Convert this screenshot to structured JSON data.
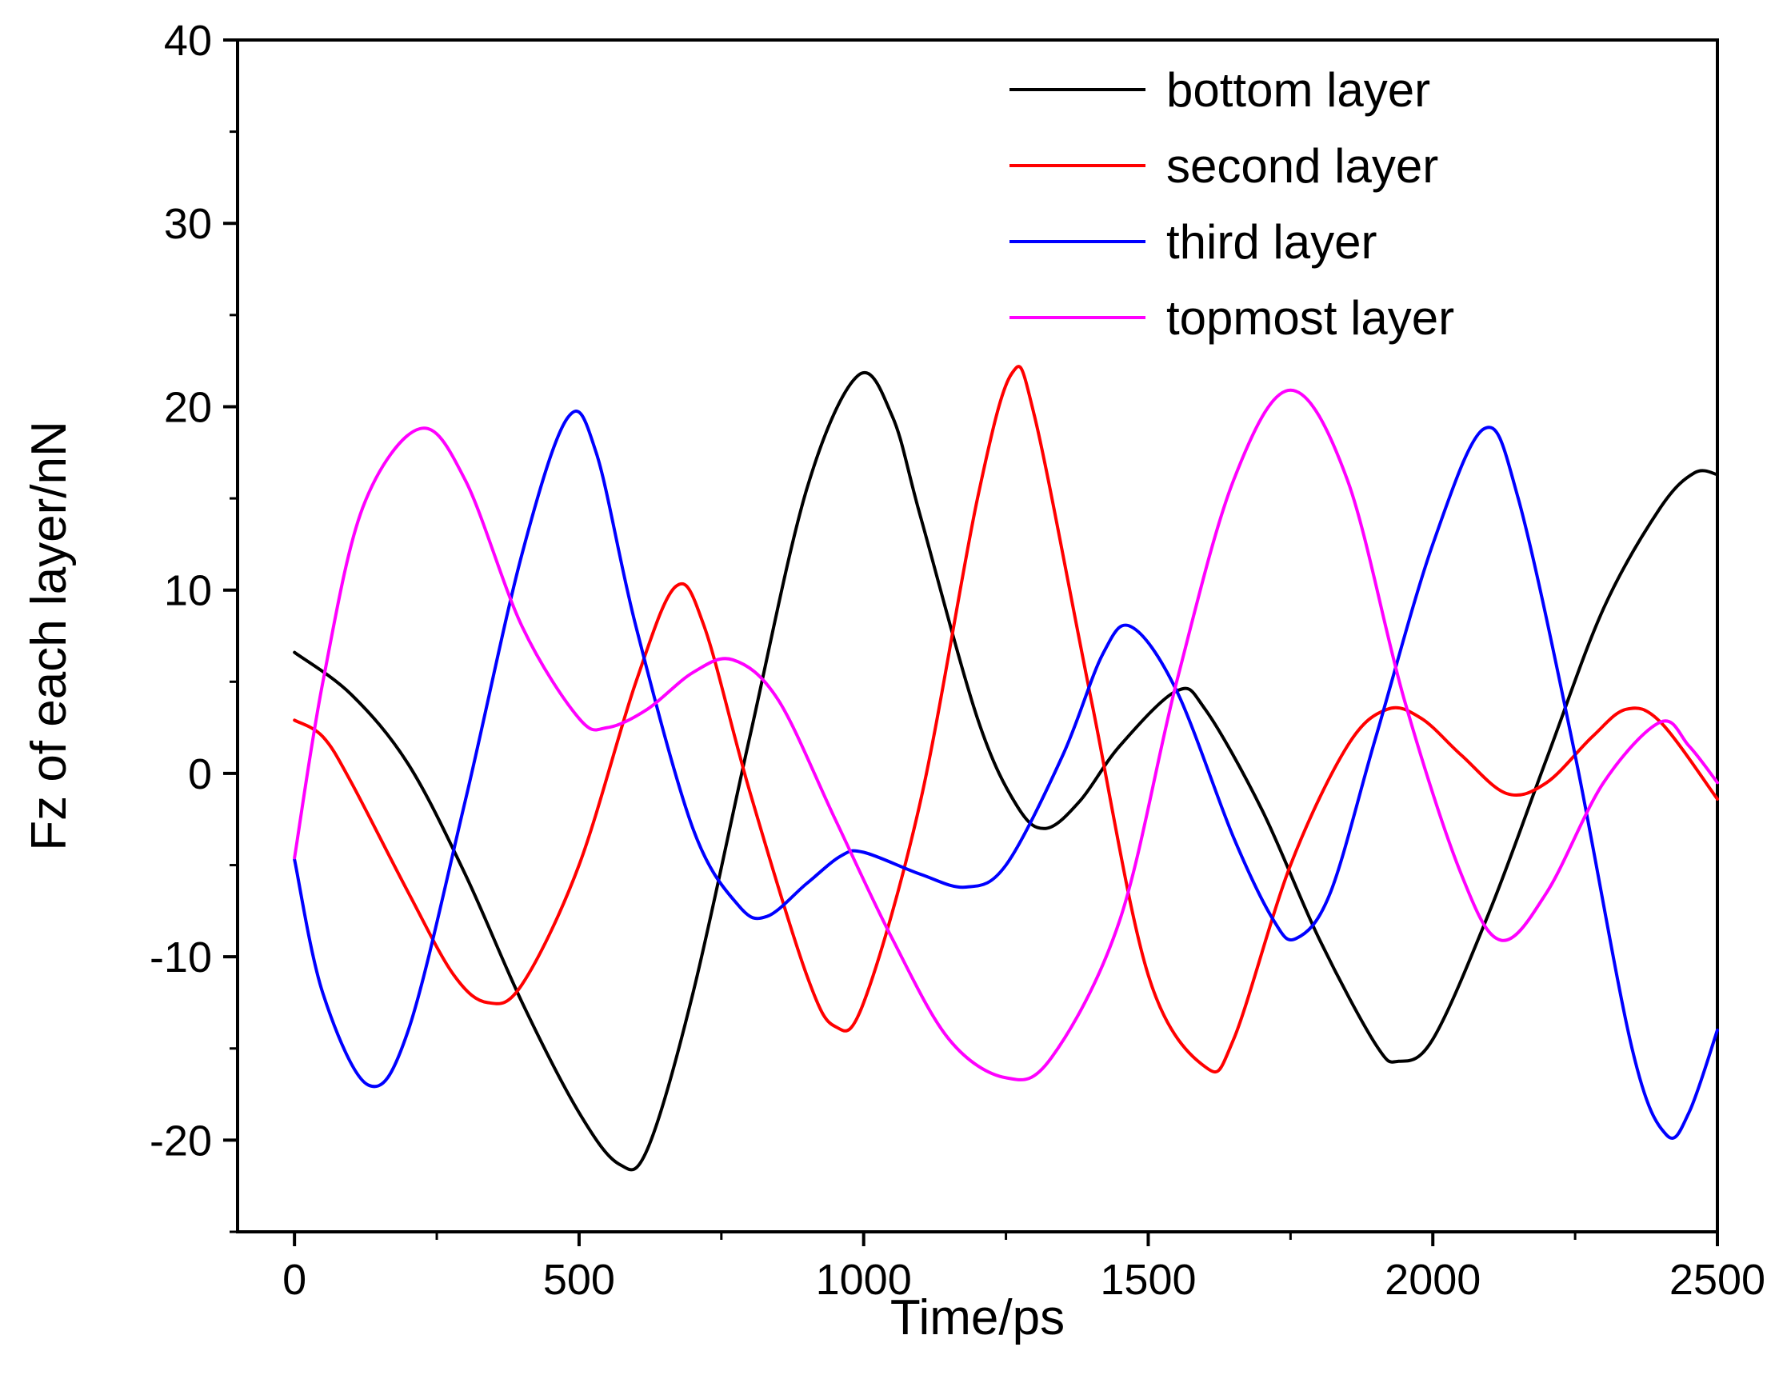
{
  "chart_data": {
    "type": "line",
    "title": "",
    "xlabel": "Time/ps",
    "ylabel": "Fz of each layer/nN",
    "xlim": [
      -100,
      2500
    ],
    "ylim": [
      -25,
      40
    ],
    "xticks": [
      0,
      500,
      1000,
      1500,
      2000,
      2500
    ],
    "xtick_labels": [
      "0",
      "500",
      "1000",
      "1500",
      "2000",
      "2500"
    ],
    "yticks": [
      -20,
      -10,
      0,
      10,
      20,
      30,
      40
    ],
    "ytick_labels": [
      "-20",
      "-10",
      "0",
      "10",
      "20",
      "30",
      "40"
    ],
    "legend_position": "top-right",
    "series": [
      {
        "name": "bottom layer",
        "color": "#000000",
        "points": [
          [
            0,
            6.6
          ],
          [
            100,
            4.3
          ],
          [
            200,
            0.5
          ],
          [
            300,
            -5.5
          ],
          [
            400,
            -12.5
          ],
          [
            500,
            -18.5
          ],
          [
            570,
            -21.3
          ],
          [
            620,
            -20.5
          ],
          [
            700,
            -12.0
          ],
          [
            800,
            2.0
          ],
          [
            900,
            15.5
          ],
          [
            990,
            21.7
          ],
          [
            1050,
            19.5
          ],
          [
            1100,
            14.0
          ],
          [
            1200,
            3.0
          ],
          [
            1270,
            -1.8
          ],
          [
            1320,
            -3.0
          ],
          [
            1380,
            -1.5
          ],
          [
            1450,
            1.5
          ],
          [
            1550,
            4.5
          ],
          [
            1600,
            3.5
          ],
          [
            1700,
            -2.0
          ],
          [
            1800,
            -9.0
          ],
          [
            1900,
            -14.8
          ],
          [
            1940,
            -15.7
          ],
          [
            2000,
            -14.5
          ],
          [
            2100,
            -7.5
          ],
          [
            2200,
            0.8
          ],
          [
            2300,
            9.0
          ],
          [
            2400,
            14.5
          ],
          [
            2460,
            16.4
          ],
          [
            2500,
            16.3
          ]
        ]
      },
      {
        "name": "second layer",
        "color": "#ff0000",
        "points": [
          [
            0,
            2.9
          ],
          [
            50,
            2.0
          ],
          [
            100,
            -0.5
          ],
          [
            200,
            -6.5
          ],
          [
            280,
            -11.0
          ],
          [
            340,
            -12.5
          ],
          [
            400,
            -11.5
          ],
          [
            500,
            -5.0
          ],
          [
            600,
            5.0
          ],
          [
            670,
            10.2
          ],
          [
            720,
            8.0
          ],
          [
            800,
            -1.0
          ],
          [
            900,
            -11.0
          ],
          [
            950,
            -13.8
          ],
          [
            1000,
            -12.5
          ],
          [
            1100,
            -1.5
          ],
          [
            1200,
            15.0
          ],
          [
            1260,
            21.8
          ],
          [
            1300,
            19.5
          ],
          [
            1400,
            4.0
          ],
          [
            1500,
            -11.0
          ],
          [
            1600,
            -16.0
          ],
          [
            1650,
            -14.5
          ],
          [
            1750,
            -5.0
          ],
          [
            1850,
            1.5
          ],
          [
            1920,
            3.5
          ],
          [
            1980,
            3.0
          ],
          [
            2050,
            1.0
          ],
          [
            2130,
            -1.1
          ],
          [
            2200,
            -0.5
          ],
          [
            2280,
            2.0
          ],
          [
            2340,
            3.5
          ],
          [
            2400,
            2.8
          ],
          [
            2500,
            -1.4
          ]
        ]
      },
      {
        "name": "third layer",
        "color": "#0000ff",
        "points": [
          [
            0,
            -4.7
          ],
          [
            50,
            -12.0
          ],
          [
            130,
            -17.0
          ],
          [
            200,
            -14.0
          ],
          [
            300,
            -1.5
          ],
          [
            400,
            12.0
          ],
          [
            480,
            19.4
          ],
          [
            530,
            17.5
          ],
          [
            600,
            8.0
          ],
          [
            700,
            -3.0
          ],
          [
            780,
            -7.2
          ],
          [
            830,
            -7.8
          ],
          [
            900,
            -6.0
          ],
          [
            960,
            -4.5
          ],
          [
            1000,
            -4.3
          ],
          [
            1100,
            -5.5
          ],
          [
            1180,
            -6.2
          ],
          [
            1250,
            -5.0
          ],
          [
            1350,
            1.0
          ],
          [
            1420,
            6.5
          ],
          [
            1470,
            8.0
          ],
          [
            1550,
            4.5
          ],
          [
            1650,
            -3.5
          ],
          [
            1720,
            -8.0
          ],
          [
            1760,
            -9.0
          ],
          [
            1820,
            -6.5
          ],
          [
            1900,
            2.0
          ],
          [
            2000,
            12.5
          ],
          [
            2090,
            18.8
          ],
          [
            2150,
            15.0
          ],
          [
            2250,
            1.0
          ],
          [
            2350,
            -15.0
          ],
          [
            2410,
            -19.7
          ],
          [
            2450,
            -18.5
          ],
          [
            2500,
            -14.0
          ]
        ]
      },
      {
        "name": "topmost layer",
        "color": "#ff00ff",
        "points": [
          [
            0,
            -4.6
          ],
          [
            50,
            5.0
          ],
          [
            120,
            14.5
          ],
          [
            220,
            18.8
          ],
          [
            300,
            16.0
          ],
          [
            400,
            8.0
          ],
          [
            500,
            3.0
          ],
          [
            550,
            2.5
          ],
          [
            620,
            3.5
          ],
          [
            700,
            5.5
          ],
          [
            770,
            6.2
          ],
          [
            850,
            4.0
          ],
          [
            950,
            -2.5
          ],
          [
            1050,
            -9.0
          ],
          [
            1150,
            -14.5
          ],
          [
            1250,
            -16.6
          ],
          [
            1330,
            -15.5
          ],
          [
            1450,
            -8.0
          ],
          [
            1550,
            5.0
          ],
          [
            1650,
            16.0
          ],
          [
            1750,
            20.9
          ],
          [
            1850,
            16.0
          ],
          [
            1950,
            4.0
          ],
          [
            2050,
            -5.5
          ],
          [
            2120,
            -9.1
          ],
          [
            2200,
            -6.5
          ],
          [
            2300,
            -0.5
          ],
          [
            2400,
            2.8
          ],
          [
            2450,
            1.5
          ],
          [
            2500,
            -0.5
          ]
        ]
      }
    ]
  }
}
